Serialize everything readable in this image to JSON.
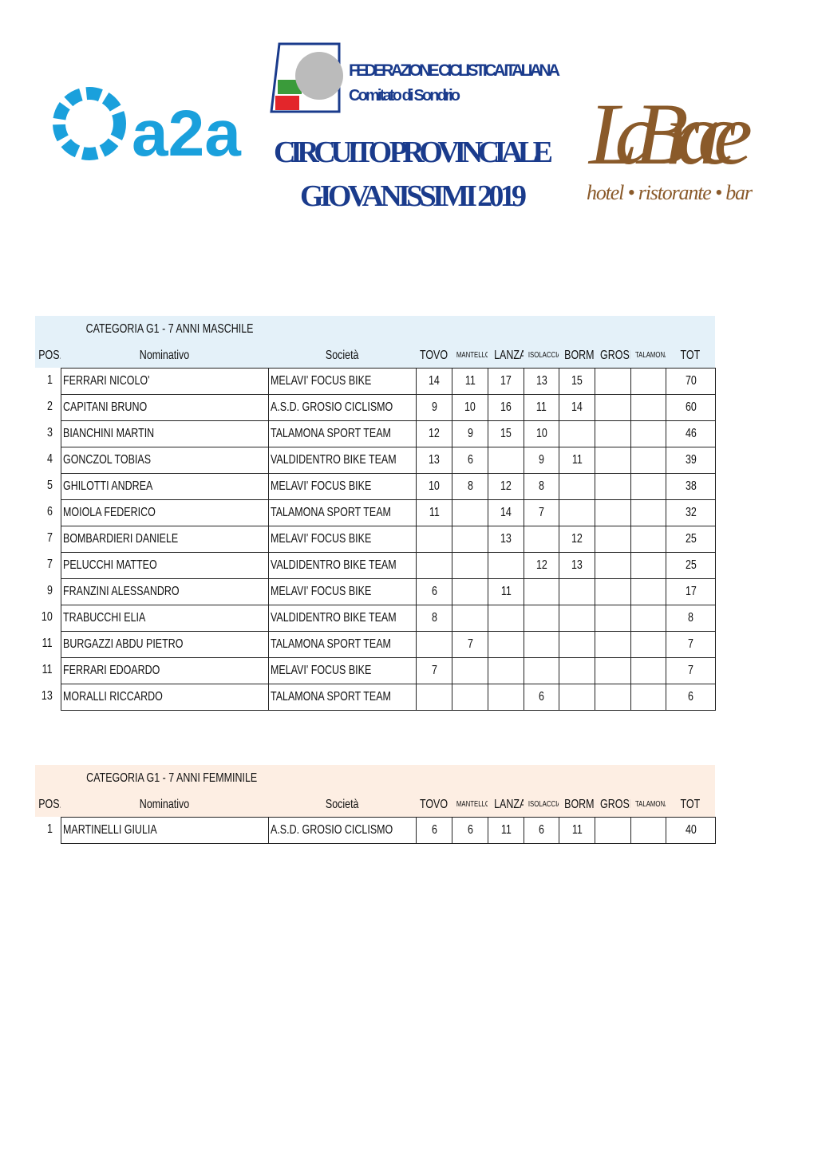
{
  "header": {
    "logo_left": "a2a",
    "federation": "FEDERAZIONE CICLISTICA ITALIANA",
    "committee": "Comitato di Sondrio",
    "title_line1": "CIRCUITO PROVINCIALE",
    "title_line2": "GIOVANISSIMI 2019",
    "logo_right": "La Brace",
    "logo_right_tagline": "hotel • ristorante • bar"
  },
  "tables": [
    {
      "category": "CATEGORIA G1 - 7 ANNI MASCHILE",
      "columns": [
        "POS.",
        "Nominativo",
        "Società",
        "TOVO",
        "MANTELLO",
        "LANZADA",
        "ISOLACCIA",
        "BORMIO",
        "GROSIO",
        "TALAMONA",
        "TOT"
      ],
      "rows": [
        [
          1,
          "FERRARI NICOLO'",
          "MELAVI' FOCUS BIKE",
          14,
          11,
          17,
          13,
          15,
          null,
          null,
          70
        ],
        [
          2,
          "CAPITANI BRUNO",
          "A.S.D. GROSIO CICLISMO",
          9,
          10,
          16,
          11,
          14,
          null,
          null,
          60
        ],
        [
          3,
          "BIANCHINI MARTIN",
          "TALAMONA SPORT TEAM",
          12,
          9,
          15,
          10,
          null,
          null,
          null,
          46
        ],
        [
          4,
          "GONCZOL TOBIAS",
          "VALDIDENTRO BIKE TEAM",
          13,
          6,
          null,
          9,
          11,
          null,
          null,
          39
        ],
        [
          5,
          "GHILOTTI ANDREA",
          "MELAVI' FOCUS BIKE",
          10,
          8,
          12,
          8,
          null,
          null,
          null,
          38
        ],
        [
          6,
          "MOIOLA FEDERICO",
          "TALAMONA SPORT TEAM",
          11,
          null,
          14,
          7,
          null,
          null,
          null,
          32
        ],
        [
          7,
          "BOMBARDIERI DANIELE",
          "MELAVI' FOCUS BIKE",
          null,
          null,
          13,
          null,
          12,
          null,
          null,
          25
        ],
        [
          7,
          "PELUCCHI MATTEO",
          "VALDIDENTRO BIKE TEAM",
          null,
          null,
          null,
          12,
          13,
          null,
          null,
          25
        ],
        [
          9,
          "FRANZINI ALESSANDRO",
          "MELAVI' FOCUS BIKE",
          6,
          null,
          11,
          null,
          null,
          null,
          null,
          17
        ],
        [
          10,
          "TRABUCCHI ELIA",
          "VALDIDENTRO BIKE TEAM",
          8,
          null,
          null,
          null,
          null,
          null,
          null,
          8
        ],
        [
          11,
          "BURGAZZI ABDU PIETRO",
          "TALAMONA SPORT TEAM",
          null,
          7,
          null,
          null,
          null,
          null,
          null,
          7
        ],
        [
          11,
          "FERRARI EDOARDO",
          "MELAVI' FOCUS BIKE",
          7,
          null,
          null,
          null,
          null,
          null,
          null,
          7
        ],
        [
          13,
          "MORALLI RICCARDO",
          "TALAMONA SPORT TEAM",
          null,
          null,
          null,
          6,
          null,
          null,
          null,
          6
        ]
      ]
    },
    {
      "category": "CATEGORIA G1 - 7 ANNI FEMMINILE",
      "columns": [
        "POS.",
        "Nominativo",
        "Società",
        "TOVO",
        "MANTELLO",
        "LANZADA",
        "ISOLACCIA",
        "BORMIO",
        "GROSIO",
        "TALAMONA",
        "TOT"
      ],
      "rows": [
        [
          1,
          "MARTINELLI GIULIA",
          "A.S.D. GROSIO CICLISMO",
          6,
          6,
          11,
          6,
          11,
          null,
          null,
          40
        ]
      ]
    }
  ]
}
